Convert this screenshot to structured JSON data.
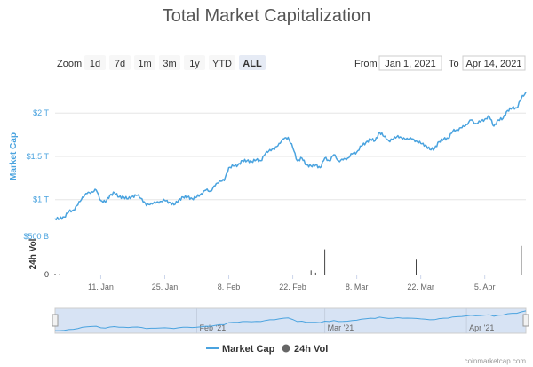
{
  "title": "Total Market Capitalization",
  "toolbar": {
    "zoom_label": "Zoom",
    "zoom_buttons": [
      "1d",
      "7d",
      "1m",
      "3m",
      "1y",
      "YTD",
      "ALL"
    ],
    "active_zoom": "ALL",
    "from_label": "From",
    "from_value": "Jan 1, 2021",
    "to_label": "To",
    "to_value": "Apr 14, 2021"
  },
  "colors": {
    "line": "#4aa3df",
    "volume": "#444444",
    "navigator_fill": "#d7e3f4"
  },
  "chart_data": {
    "type": "line",
    "x_start": "2021-01-01",
    "x_end": "2021-04-14",
    "xticks": [
      {
        "date": "2021-01-11",
        "label": "11. Jan"
      },
      {
        "date": "2021-01-25",
        "label": "25. Jan"
      },
      {
        "date": "2021-02-08",
        "label": "8. Feb"
      },
      {
        "date": "2021-02-22",
        "label": "22. Feb"
      },
      {
        "date": "2021-03-08",
        "label": "8. Mar"
      },
      {
        "date": "2021-03-22",
        "label": "22. Mar"
      },
      {
        "date": "2021-04-05",
        "label": "5. Apr"
      }
    ],
    "market_cap": {
      "name": "Market Cap",
      "ylabel": "Market Cap",
      "yticks": [
        {
          "value": 1.0,
          "label": "$1 T"
        },
        {
          "value": 1.5,
          "label": "$1.5 T"
        },
        {
          "value": 2.0,
          "label": "$2 T"
        }
      ],
      "ylim": [
        0.72,
        2.3
      ],
      "unit": "T USD",
      "points": [
        [
          "2021-01-01",
          0.78
        ],
        [
          "2021-01-02",
          0.78
        ],
        [
          "2021-01-03",
          0.8
        ],
        [
          "2021-01-04",
          0.86
        ],
        [
          "2021-01-05",
          0.88
        ],
        [
          "2021-01-06",
          0.94
        ],
        [
          "2021-01-07",
          1.03
        ],
        [
          "2021-01-08",
          1.07
        ],
        [
          "2021-01-09",
          1.09
        ],
        [
          "2021-01-10",
          1.11
        ],
        [
          "2021-01-11",
          0.99
        ],
        [
          "2021-01-12",
          0.97
        ],
        [
          "2021-01-13",
          1.05
        ],
        [
          "2021-01-14",
          1.08
        ],
        [
          "2021-01-15",
          1.03
        ],
        [
          "2021-01-16",
          1.03
        ],
        [
          "2021-01-17",
          1.01
        ],
        [
          "2021-01-18",
          1.04
        ],
        [
          "2021-01-19",
          1.05
        ],
        [
          "2021-01-20",
          1.01
        ],
        [
          "2021-01-21",
          0.93
        ],
        [
          "2021-01-22",
          0.96
        ],
        [
          "2021-01-23",
          0.96
        ],
        [
          "2021-01-24",
          0.98
        ],
        [
          "2021-01-25",
          0.99
        ],
        [
          "2021-01-26",
          0.97
        ],
        [
          "2021-01-27",
          0.94
        ],
        [
          "2021-01-28",
          0.99
        ],
        [
          "2021-01-29",
          1.03
        ],
        [
          "2021-01-30",
          1.03
        ],
        [
          "2021-01-31",
          1.01
        ],
        [
          "2021-02-01",
          1.03
        ],
        [
          "2021-02-02",
          1.07
        ],
        [
          "2021-02-03",
          1.11
        ],
        [
          "2021-02-04",
          1.1
        ],
        [
          "2021-02-05",
          1.16
        ],
        [
          "2021-02-06",
          1.22
        ],
        [
          "2021-02-07",
          1.22
        ],
        [
          "2021-02-08",
          1.37
        ],
        [
          "2021-02-09",
          1.39
        ],
        [
          "2021-02-10",
          1.4
        ],
        [
          "2021-02-11",
          1.45
        ],
        [
          "2021-02-12",
          1.45
        ],
        [
          "2021-02-13",
          1.44
        ],
        [
          "2021-02-14",
          1.46
        ],
        [
          "2021-02-15",
          1.45
        ],
        [
          "2021-02-16",
          1.53
        ],
        [
          "2021-02-17",
          1.58
        ],
        [
          "2021-02-18",
          1.58
        ],
        [
          "2021-02-19",
          1.65
        ],
        [
          "2021-02-20",
          1.7
        ],
        [
          "2021-02-21",
          1.72
        ],
        [
          "2021-02-22",
          1.6
        ],
        [
          "2021-02-23",
          1.45
        ],
        [
          "2021-02-24",
          1.48
        ],
        [
          "2021-02-25",
          1.4
        ],
        [
          "2021-02-26",
          1.39
        ],
        [
          "2021-02-27",
          1.4
        ],
        [
          "2021-02-28",
          1.37
        ],
        [
          "2021-03-01",
          1.48
        ],
        [
          "2021-03-02",
          1.45
        ],
        [
          "2021-03-03",
          1.52
        ],
        [
          "2021-03-04",
          1.45
        ],
        [
          "2021-03-05",
          1.46
        ],
        [
          "2021-03-06",
          1.48
        ],
        [
          "2021-03-07",
          1.53
        ],
        [
          "2021-03-08",
          1.55
        ],
        [
          "2021-03-09",
          1.62
        ],
        [
          "2021-03-10",
          1.66
        ],
        [
          "2021-03-11",
          1.7
        ],
        [
          "2021-03-12",
          1.68
        ],
        [
          "2021-03-13",
          1.78
        ],
        [
          "2021-03-14",
          1.73
        ],
        [
          "2021-03-15",
          1.68
        ],
        [
          "2021-03-16",
          1.7
        ],
        [
          "2021-03-17",
          1.74
        ],
        [
          "2021-03-18",
          1.7
        ],
        [
          "2021-03-19",
          1.71
        ],
        [
          "2021-03-20",
          1.7
        ],
        [
          "2021-03-21",
          1.68
        ],
        [
          "2021-03-22",
          1.65
        ],
        [
          "2021-03-23",
          1.63
        ],
        [
          "2021-03-24",
          1.58
        ],
        [
          "2021-03-25",
          1.59
        ],
        [
          "2021-03-26",
          1.67
        ],
        [
          "2021-03-27",
          1.7
        ],
        [
          "2021-03-28",
          1.71
        ],
        [
          "2021-03-29",
          1.79
        ],
        [
          "2021-03-30",
          1.81
        ],
        [
          "2021-03-31",
          1.83
        ],
        [
          "2021-04-01",
          1.87
        ],
        [
          "2021-04-02",
          1.92
        ],
        [
          "2021-04-03",
          1.88
        ],
        [
          "2021-04-04",
          1.9
        ],
        [
          "2021-04-05",
          1.93
        ],
        [
          "2021-04-06",
          1.96
        ],
        [
          "2021-04-07",
          1.85
        ],
        [
          "2021-04-08",
          1.92
        ],
        [
          "2021-04-09",
          1.94
        ],
        [
          "2021-04-10",
          2.03
        ],
        [
          "2021-04-11",
          2.06
        ],
        [
          "2021-04-12",
          2.06
        ],
        [
          "2021-04-13",
          2.17
        ],
        [
          "2021-04-14",
          2.24
        ]
      ]
    },
    "volume": {
      "name": "24h Vol",
      "ylabel": "24h Vol",
      "yticks": [
        {
          "value": 0,
          "label": "0"
        },
        {
          "value": 500,
          "label": "$500 B"
        }
      ],
      "ylim": [
        0,
        500
      ],
      "unit": "B USD",
      "spikes": [
        [
          "2021-01-01",
          12
        ],
        [
          "2021-01-02",
          8
        ],
        [
          "2021-02-26",
          55
        ],
        [
          "2021-02-27",
          25
        ],
        [
          "2021-03-01",
          330
        ],
        [
          "2021-03-21",
          195
        ],
        [
          "2021-04-13",
          375
        ]
      ]
    },
    "navigator": {
      "xticks": [
        {
          "date": "2021-02-01",
          "label": "Feb '21"
        },
        {
          "date": "2021-03-01",
          "label": "Mar '21"
        },
        {
          "date": "2021-04-01",
          "label": "Apr '21"
        }
      ]
    },
    "legend": [
      "Market Cap",
      "24h Vol"
    ],
    "credit": "coinmarketcap.com"
  }
}
